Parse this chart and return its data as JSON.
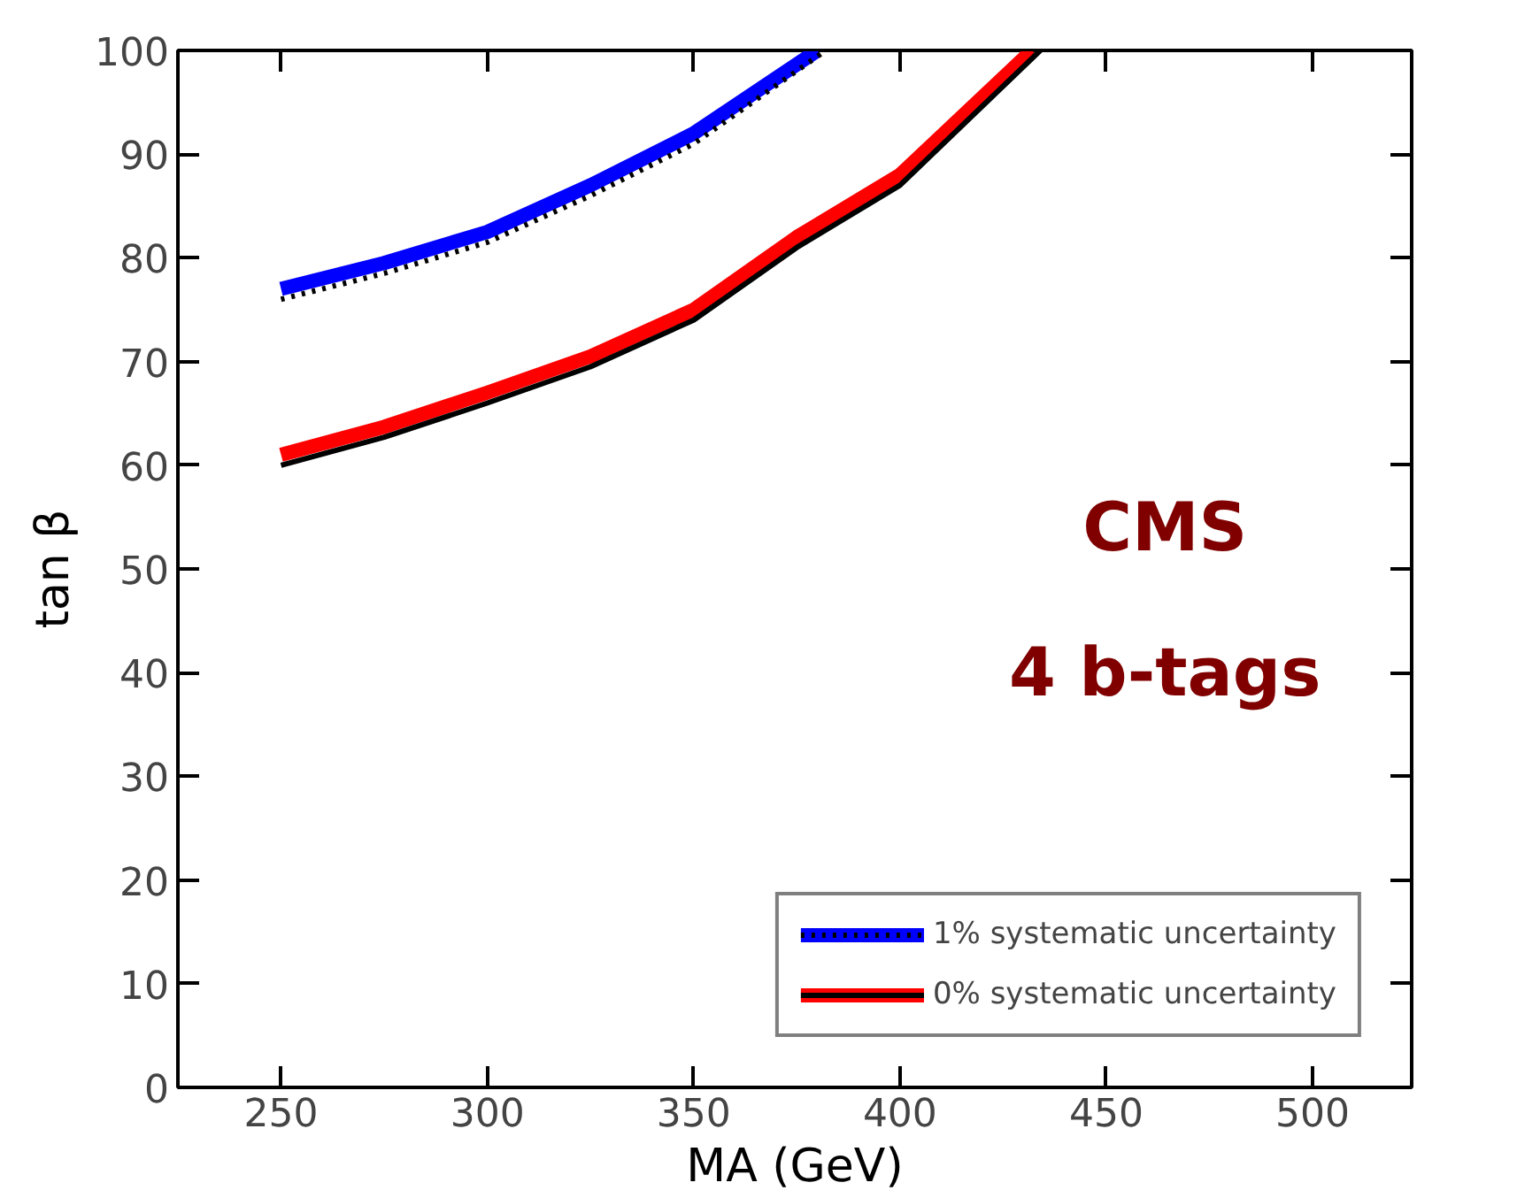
{
  "chart_data": {
    "type": "line",
    "xlabel": "MA (GeV)",
    "ylabel": "tan β",
    "xlim": [
      225,
      524
    ],
    "ylim": [
      0,
      100
    ],
    "xticks": [
      250,
      300,
      350,
      400,
      450,
      500
    ],
    "yticks": [
      0,
      10,
      20,
      30,
      40,
      50,
      60,
      70,
      80,
      90,
      100
    ],
    "grid": false,
    "legend": "bottom right",
    "series": [
      {
        "name": "1% systematic uncertainty",
        "color": "#0000ff",
        "x": [
          250,
          275,
          300,
          325,
          350,
          380
        ],
        "values": [
          77,
          79.5,
          82.5,
          87,
          92,
          100
        ]
      },
      {
        "color": "#000000",
        "line_style": "dotted",
        "x": [
          250,
          275,
          300,
          325,
          350,
          382
        ],
        "values": [
          76,
          78.5,
          81.5,
          86,
          91,
          100
        ]
      },
      {
        "name": "0% systematic uncertainty",
        "color": "#ff0000",
        "x": [
          250,
          275,
          300,
          325,
          350,
          375,
          400,
          432
        ],
        "values": [
          61,
          63.7,
          67,
          70.5,
          75,
          82,
          88,
          100
        ]
      },
      {
        "color": "#000000",
        "x": [
          250,
          275,
          300,
          325,
          350,
          375,
          400,
          434
        ],
        "values": [
          60,
          62.7,
          66,
          69.5,
          74,
          81,
          87,
          100
        ]
      }
    ],
    "annotations": [
      "CMS",
      "4 b-tags"
    ]
  }
}
